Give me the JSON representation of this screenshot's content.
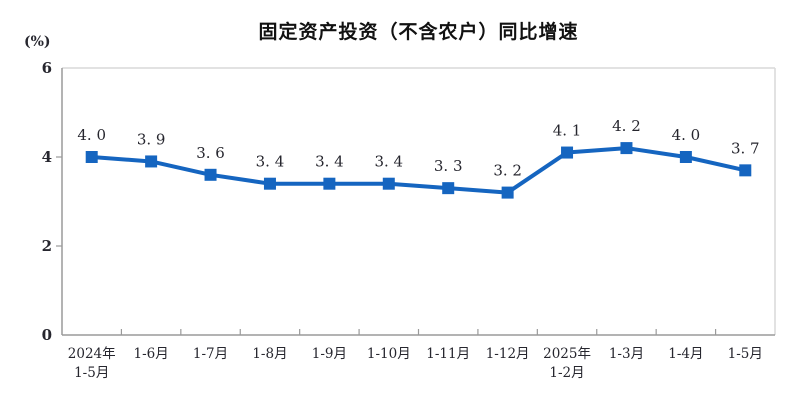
{
  "chart_data": {
    "type": "line",
    "title": "固定资产投资（不含农户）同比增速",
    "unit_label": "(%)",
    "categories": [
      "2024年\n1-5月",
      "1-6月",
      "1-7月",
      "1-8月",
      "1-9月",
      "1-10月",
      "1-11月",
      "1-12月",
      "2025年\n1-2月",
      "1-3月",
      "1-4月",
      "1-5月"
    ],
    "values": [
      4.0,
      3.9,
      3.6,
      3.4,
      3.4,
      3.4,
      3.3,
      3.2,
      4.1,
      4.2,
      4.0,
      3.7
    ],
    "data_labels": [
      "4. 0",
      "3. 9",
      "3. 6",
      "3. 4",
      "3. 4",
      "3. 4",
      "3. 3",
      "3. 2",
      "4. 1",
      "4. 2",
      "4. 0",
      "3. 7"
    ],
    "y_ticks": [
      0,
      2,
      4,
      6
    ],
    "ylim": [
      0,
      6
    ],
    "grid": false,
    "legend": "none",
    "marker": "square",
    "line_color": "#1565C0",
    "label_text_color": "#26262e",
    "axis_color": "#9a9a9a",
    "border_color": "#d9d9d9"
  }
}
